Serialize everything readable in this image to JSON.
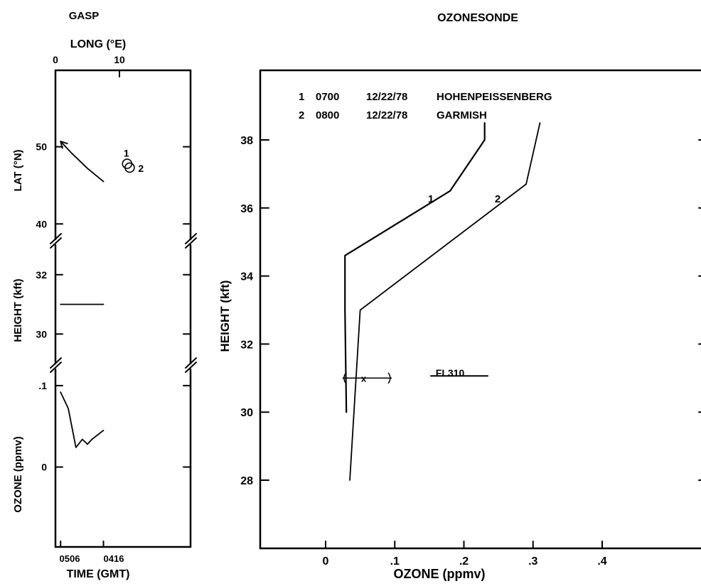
{
  "chart_data": [
    {
      "type": "line",
      "title": "GASP",
      "x_top_label": "LONG (°E)",
      "x_top_ticks": [
        "0",
        "10"
      ],
      "xlabel": "TIME (GMT)",
      "x_bottom_ticks": [
        "0506",
        "0416"
      ],
      "panels": [
        {
          "ylabel": "LAT (°N)",
          "yticks": [
            "40",
            "50"
          ],
          "ylim": [
            38,
            60
          ],
          "series": [
            {
              "x": [
                0.8,
                2.5,
                5,
                7.5
              ],
              "y": [
                50.7,
                49.2,
                47.2,
                45.5
              ],
              "arrow": "start"
            }
          ],
          "markers": [
            {
              "label": "1",
              "x": 11.2,
              "y": 47.8
            },
            {
              "label": "2",
              "x": 11.6,
              "y": 47.3
            }
          ]
        },
        {
          "ylabel": "HEIGHT (kft)",
          "yticks": [
            "30",
            "32"
          ],
          "ylim": [
            29,
            33
          ],
          "series": [
            {
              "x": [
                0.8,
                7.5
              ],
              "y": [
                31,
                31
              ]
            }
          ]
        },
        {
          "ylabel": "OZONE (ppmv)",
          "yticks": [
            "0",
            ".1"
          ],
          "ylim": [
            -0.1,
            0.12
          ],
          "series": [
            {
              "x": [
                0.8,
                2.0,
                3.2,
                4.2,
                5.0,
                5.7,
                7.5
              ],
              "y": [
                0.092,
                0.072,
                0.024,
                0.034,
                0.028,
                0.034,
                0.045
              ]
            }
          ]
        }
      ]
    },
    {
      "type": "line",
      "title": "OZONESONDE",
      "xlabel": "OZONE (ppmv)",
      "ylabel": "HEIGHT (kft)",
      "xlim": [
        -0.1,
        0.56
      ],
      "ylim": [
        26,
        40
      ],
      "xticks": [
        "0",
        ".1",
        ".2",
        ".3",
        ".4"
      ],
      "yticks": [
        "28",
        "30",
        "32",
        "34",
        "36",
        "38"
      ],
      "legend": [
        {
          "num": "1",
          "time": "0700",
          "date": "12/22/78",
          "station": "HOHENPEISSENBERG"
        },
        {
          "num": "2",
          "time": "0800",
          "date": "12/22/78",
          "station": "GARMISH"
        }
      ],
      "series": [
        {
          "name": "1",
          "x": [
            0.03,
            0.028,
            0.028,
            0.18,
            0.23,
            0.23
          ],
          "y": [
            30.0,
            33.0,
            34.6,
            36.5,
            38.0,
            38.5
          ]
        },
        {
          "name": "2",
          "x": [
            0.035,
            0.05,
            0.29,
            0.31
          ],
          "y": [
            28.0,
            33.0,
            36.7,
            38.5
          ]
        }
      ],
      "annotations": {
        "fl_label": "FL310",
        "fl_altitude": 31,
        "range_low": 0.025,
        "range_high": 0.095,
        "range_marker": "x",
        "range_center": 0.055
      }
    }
  ]
}
